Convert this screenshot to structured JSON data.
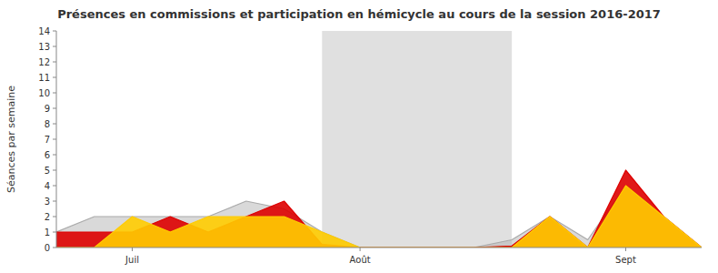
{
  "chart_data": {
    "type": "area",
    "title": "Présences en commissions et participation en hémicycle au cours de la session 2016-2017",
    "ylabel": "Séances par semaine",
    "x": [
      0,
      1,
      2,
      3,
      4,
      5,
      6,
      7,
      8,
      9,
      10,
      11,
      12,
      13,
      14,
      15,
      16,
      17
    ],
    "series": [
      {
        "color": "#aaaaaa",
        "values": [
          1,
          2,
          2,
          2,
          2,
          3,
          2.5,
          1,
          0,
          0,
          0,
          0,
          0.5,
          2,
          0.5,
          4,
          2,
          0
        ]
      },
      {
        "color": "#dd0000",
        "values": [
          1,
          1,
          1,
          2,
          1,
          2,
          3,
          0.2,
          0,
          0,
          0,
          0,
          0.1,
          2,
          0,
          5,
          2,
          0
        ]
      },
      {
        "color": "#ffcc00",
        "values": [
          0,
          0,
          2,
          1,
          2,
          2,
          2,
          1,
          0,
          0,
          0,
          0,
          0,
          2,
          0,
          4,
          2,
          0
        ]
      }
    ],
    "shaded_x": [
      7,
      12
    ],
    "xlim": [
      0,
      17
    ],
    "xticks": [
      {
        "value": 2,
        "label": "Juil"
      },
      {
        "value": 8,
        "label": "Août"
      },
      {
        "value": 15,
        "label": "Sept"
      }
    ],
    "ylim": [
      0,
      14
    ],
    "yticks": [
      0,
      1,
      2,
      3,
      4,
      5,
      6,
      7,
      8,
      9,
      10,
      11,
      12,
      13,
      14
    ],
    "grid": false
  }
}
